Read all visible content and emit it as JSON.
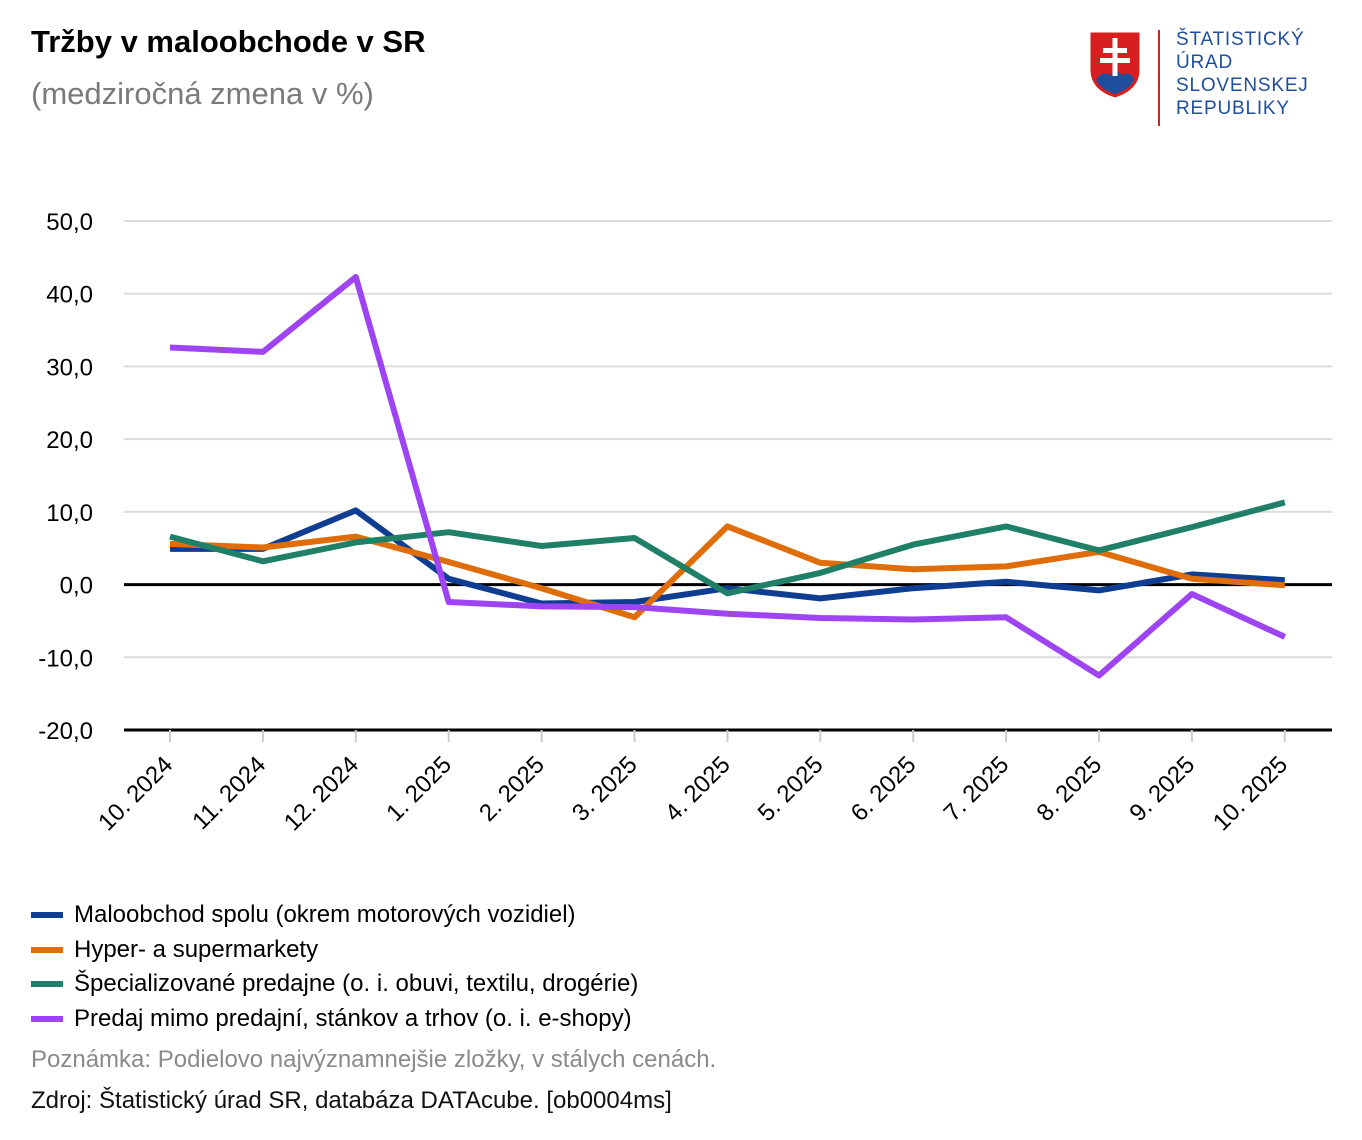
{
  "header": {
    "title": "Tržby v maloobchode v SR",
    "subtitle": "(medziročná zmena v %)"
  },
  "logo": {
    "lines": [
      "ŠTATISTICKÝ",
      "ÚRAD",
      "SLOVENSKEJ",
      "REPUBLIKY"
    ],
    "colors": {
      "text": "#1f4e9c",
      "red": "#d81e1e",
      "blue": "#1f4e9c",
      "white": "#ffffff"
    }
  },
  "chart_data": {
    "type": "line",
    "categories": [
      "10. 2024",
      "11. 2024",
      "12. 2024",
      "1. 2025",
      "2. 2025",
      "3. 2025",
      "4. 2025",
      "5. 2025",
      "6. 2025",
      "7. 2025",
      "8. 2025",
      "9. 2025",
      "10. 2025"
    ],
    "ylim": [
      -20,
      50
    ],
    "yticks": [
      50,
      40,
      30,
      20,
      10,
      0,
      -10,
      -20
    ],
    "ytick_labels": [
      "50,0",
      "40,0",
      "30,0",
      "20,0",
      "10,0",
      "0,0",
      "-10,0",
      "-20,0"
    ],
    "grid": true,
    "series": [
      {
        "name": "Maloobchod spolu (okrem motorových vozidiel)",
        "color": "#0f3d91",
        "values": [
          4.9,
          4.9,
          10.2,
          0.8,
          -2.6,
          -2.4,
          -0.5,
          -1.9,
          -0.5,
          0.4,
          -0.8,
          1.4,
          0.6
        ]
      },
      {
        "name": "Hyper- a supermarkety",
        "color": "#df6e0a",
        "values": [
          5.6,
          5.1,
          6.6,
          3.1,
          -0.5,
          -4.5,
          8.0,
          3.0,
          2.1,
          2.5,
          4.5,
          0.8,
          -0.1
        ]
      },
      {
        "name": "Špecializované predajne (o. i. obuvi, textilu, drogérie)",
        "color": "#1f8067",
        "values": [
          6.6,
          3.2,
          5.8,
          7.2,
          5.3,
          6.4,
          -1.2,
          1.6,
          5.5,
          8.0,
          4.7,
          7.9,
          11.3
        ]
      },
      {
        "name": "Predaj mimo predajní, stánkov a trhov (o. i. e-shopy)",
        "color": "#9f44f2",
        "values": [
          32.6,
          32.0,
          42.3,
          -2.4,
          -3.0,
          -3.1,
          -4.0,
          -4.6,
          -4.8,
          -4.5,
          -12.5,
          -1.3,
          -7.2
        ]
      }
    ]
  },
  "footer": {
    "note": "Poznámka: Podielovo najvýznamnejšie zložky, v stálych cenách.",
    "source": "Zdroj: Štatistický úrad SR, databáza DATAcube. [ob0004ms]"
  }
}
